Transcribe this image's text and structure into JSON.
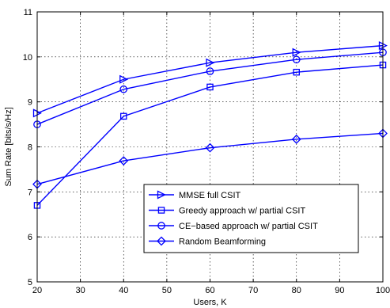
{
  "chart_data": {
    "type": "line",
    "xlabel": "Users, K",
    "ylabel": "Sum Rate [bits/s/Hz]",
    "xlim": [
      20,
      100
    ],
    "ylim": [
      5,
      11
    ],
    "xticks": [
      20,
      30,
      40,
      50,
      60,
      70,
      80,
      90,
      100
    ],
    "yticks": [
      5,
      6,
      7,
      8,
      9,
      10,
      11
    ],
    "grid": true,
    "legend_position": "lower-right",
    "line_color": "#0000ff",
    "x": [
      20,
      40,
      60,
      80,
      100
    ],
    "series": [
      {
        "name": "MMSE full CSIT",
        "marker": "triangle-right",
        "values": [
          8.75,
          9.5,
          9.87,
          10.1,
          10.25
        ]
      },
      {
        "name": "Greedy approach w/ partial CSIT",
        "marker": "square",
        "values": [
          6.7,
          8.68,
          9.33,
          9.66,
          9.82
        ]
      },
      {
        "name": "CE−based approach w/ partial CSIT",
        "marker": "circle",
        "values": [
          8.5,
          9.28,
          9.68,
          9.94,
          10.1
        ]
      },
      {
        "name": "Random Beamforming",
        "marker": "diamond",
        "values": [
          7.17,
          7.69,
          7.98,
          8.17,
          8.3
        ]
      }
    ]
  }
}
